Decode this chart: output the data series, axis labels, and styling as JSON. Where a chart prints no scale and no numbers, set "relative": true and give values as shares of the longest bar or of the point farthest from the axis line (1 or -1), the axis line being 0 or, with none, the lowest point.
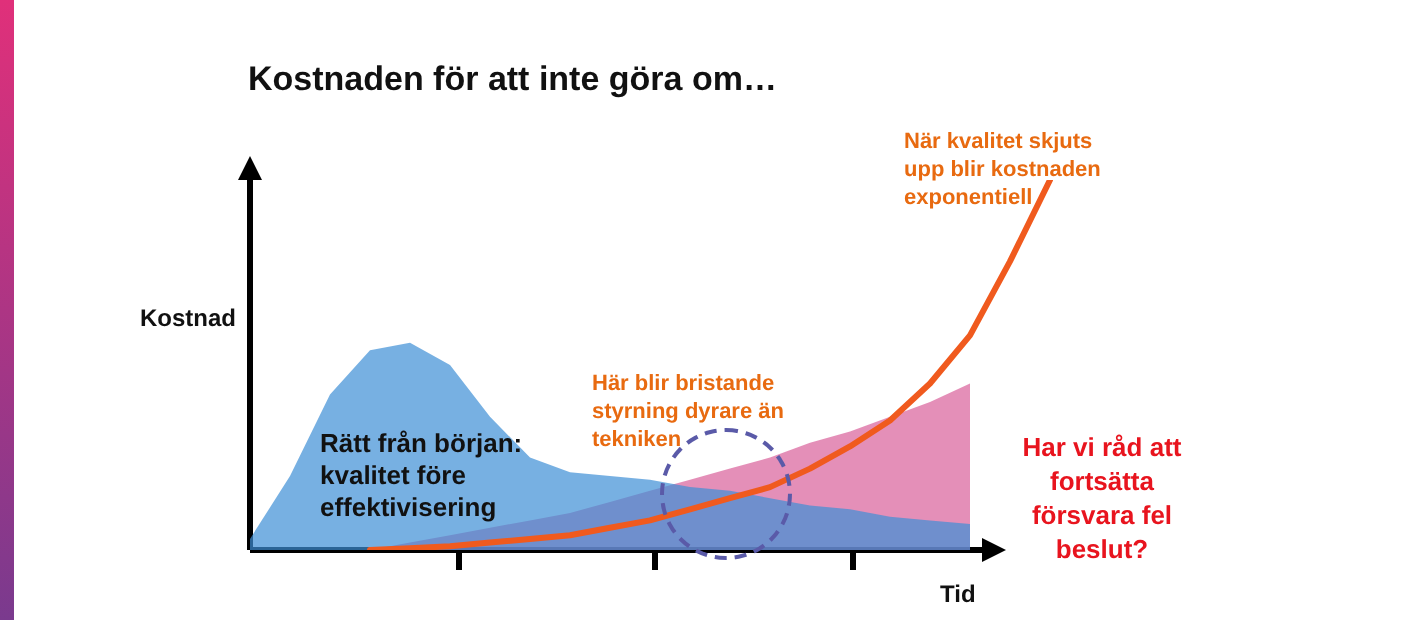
{
  "chart_data": {
    "type": "area",
    "title": "Kostnaden för att inte göra om…",
    "xlabel": "Tid",
    "ylabel": "Kostnad",
    "relative": true,
    "categories": [
      null,
      null,
      null,
      null,
      null,
      null,
      null,
      null,
      null,
      null,
      null,
      null,
      null,
      null,
      null,
      null,
      null,
      null,
      null,
      null,
      null
    ],
    "series": [
      {
        "color": "#3d8fd6",
        "values": [
          0.03,
          0.2,
          0.42,
          0.54,
          0.56,
          0.5,
          0.36,
          0.25,
          0.21,
          0.2,
          0.19,
          0.17,
          0.16,
          0.14,
          0.12,
          0.11,
          0.09,
          0.08,
          0.07,
          null,
          null
        ]
      },
      {
        "color": "#d9609a",
        "values": [
          null,
          null,
          null,
          0,
          0.02,
          0.04,
          0.06,
          0.08,
          0.1,
          0.13,
          0.16,
          0.19,
          0.22,
          0.25,
          0.29,
          0.32,
          0.36,
          0.4,
          0.45,
          null,
          null
        ]
      },
      {
        "type": "line",
        "color": "#f05a1e",
        "values": [
          null,
          null,
          null,
          0,
          0.005,
          0.01,
          0.02,
          0.03,
          0.04,
          0.06,
          0.08,
          0.11,
          0.14,
          0.17,
          0.22,
          0.28,
          0.35,
          0.45,
          0.58,
          0.78,
          1
        ]
      }
    ],
    "annotations": [
      "Rätt från början: kvalitet före effektivisering",
      "Här blir bristande styrning dyrare än tekniken",
      "När kvalitet skjuts upp blir kostnaden exponentiell",
      "Har vi råd att fortsätta försvara fel beslut?"
    ]
  }
}
